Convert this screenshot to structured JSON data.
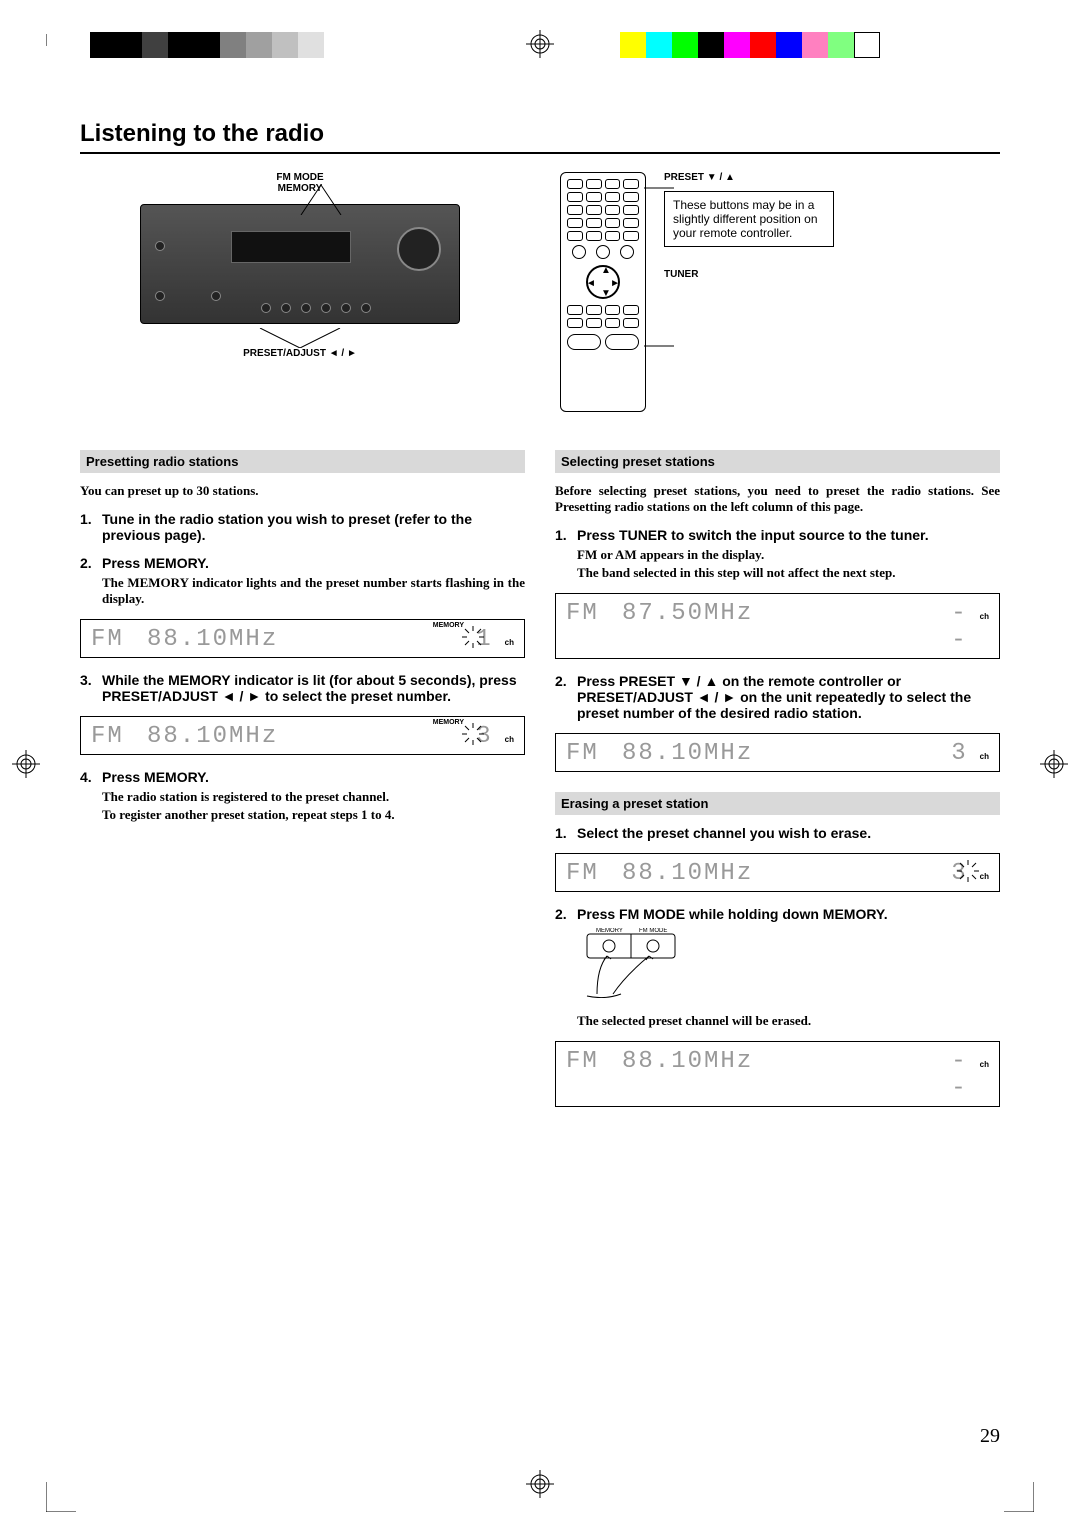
{
  "print_marks": {
    "left_bar": [
      "#000000",
      "#000000",
      "#404040",
      "#000000",
      "#000000",
      "#808080",
      "#a0a0a0",
      "#c0c0c0",
      "#e0e0e0"
    ],
    "right_bar": [
      "#ffff00",
      "#00ffff",
      "#00ff00",
      "#000000",
      "#ff00ff",
      "#ff0000",
      "#0000ff",
      "#ff80c0",
      "#80ff80",
      "#ffffff"
    ]
  },
  "page_number": "29",
  "title": "Listening to the radio",
  "receiver_labels": {
    "top1": "FM MODE",
    "top2": "MEMORY",
    "bottom": "PRESET/ADJUST ◄ / ►"
  },
  "remote_labels": {
    "preset": "PRESET ▼ / ▲",
    "tuner": "TUNER",
    "note": "These buttons may be in a slightly different position on your remote controller."
  },
  "left": {
    "heading": "Presetting radio stations",
    "intro": "You can preset up to 30 stations.",
    "s1": "Tune in the radio station you wish to preset (refer to the previous page).",
    "s2": "Press MEMORY.",
    "s2sub": "The MEMORY indicator lights and the preset number starts flashing in the display.",
    "lcd1": {
      "band": "FM",
      "freq": "88.10MHz",
      "ch": "1",
      "mem": "MEMORY",
      "flash": true
    },
    "s3": "While the MEMORY indicator is lit (for about 5 seconds), press PRESET/ADJUST ◄ / ► to select the preset number.",
    "lcd2": {
      "band": "FM",
      "freq": "88.10MHz",
      "ch": "3",
      "mem": "MEMORY",
      "flash": true
    },
    "s4": "Press MEMORY.",
    "s4sub1": "The radio station is registered to the preset channel.",
    "s4sub2": "To register another preset station, repeat steps 1 to 4."
  },
  "right": {
    "heading1": "Selecting preset stations",
    "intro": "Before selecting preset stations, you need to preset the radio stations. See Presetting radio stations on the left column of this page.",
    "s1": "Press TUNER to switch the input source to the tuner.",
    "s1sub1": "FM or AM appears in the display.",
    "s1sub2": "The band selected in this step will not affect the next step.",
    "lcd1": {
      "band": "FM",
      "freq": "87.50MHz",
      "ch": "--"
    },
    "s2": "Press PRESET ▼ / ▲ on the remote controller or PRESET/ADJUST ◄ / ► on the unit repeatedly to select the preset number of the desired radio station.",
    "lcd2": {
      "band": "FM",
      "freq": "88.10MHz",
      "ch": "3"
    },
    "heading2": "Erasing a preset station",
    "e1": "Select the preset channel you wish to erase.",
    "lcd3": {
      "band": "FM",
      "freq": "88.10MHz",
      "ch": "3",
      "flash": true
    },
    "e2": "Press FM MODE while holding down MEMORY.",
    "btnlbl1": "MEMORY",
    "btnlbl2": "FM MODE",
    "e2sub": "The selected preset channel will be erased.",
    "lcd4": {
      "band": "FM",
      "freq": "88.10MHz",
      "ch": "--"
    }
  }
}
